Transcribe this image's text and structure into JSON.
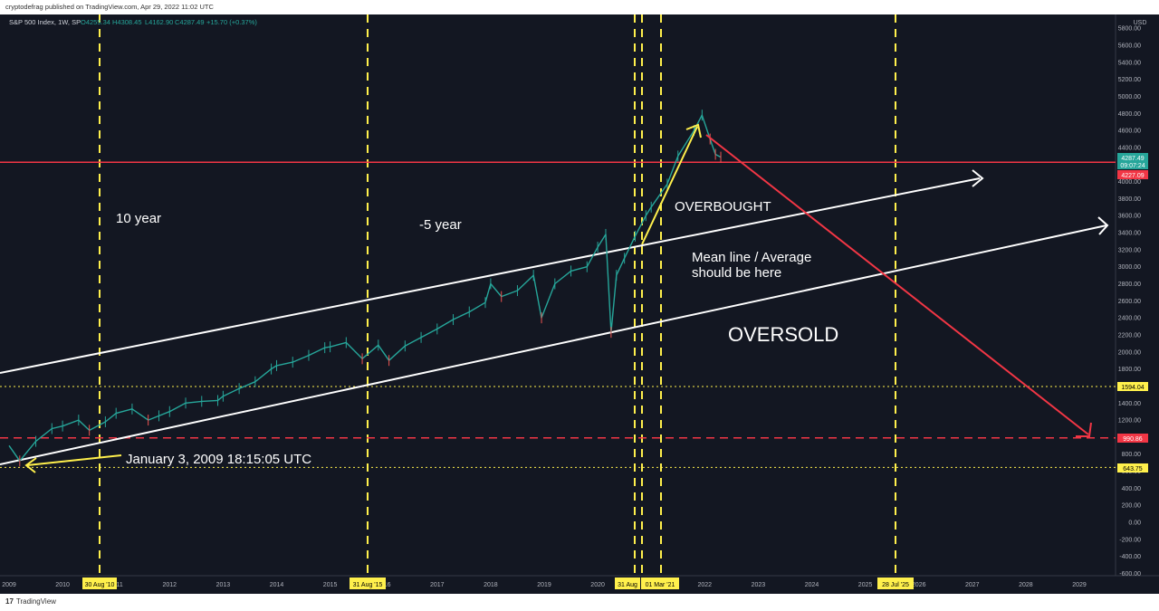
{
  "header": {
    "publisher": "cryptodefrag published on TradingView.com, Apr 29, 2022 11:02 UTC"
  },
  "footer": {
    "brand_mark": "17",
    "brand": "TradingView"
  },
  "legend": {
    "symbol": "S&P 500 Index, 1W, SP",
    "open": "O4255.34",
    "high": "H4308.45",
    "low": "L4162.90",
    "close": "C4287.49",
    "change": "+15.70 (+0.37%)"
  },
  "price_axis": {
    "currency": "USD",
    "ticks": [
      5800,
      5600,
      5400,
      5200,
      5000,
      4800,
      4600,
      4400,
      4000,
      3800,
      3600,
      3400,
      3200,
      3000,
      2800,
      2600,
      2400,
      2200,
      2000,
      1800,
      1400,
      1200,
      800,
      600,
      400,
      200,
      0,
      -200,
      -400,
      -600
    ],
    "last_price": "4287.49",
    "countdown": "09:07:24",
    "red_level_label": "4227.09",
    "level_1594": "1594.04",
    "level_990": "990.86",
    "level_643": "643.75",
    "colors": {
      "last": "#26a69a",
      "red": "#f23645",
      "yellow": "#fff04c"
    }
  },
  "time_axis": {
    "years": [
      "2009",
      "2010",
      "2011",
      "2012",
      "2013",
      "2014",
      "2015",
      "2016",
      "2017",
      "2018",
      "2019",
      "2020",
      "2021",
      "2022",
      "2023",
      "2024",
      "2025",
      "2026",
      "2027",
      "2028",
      "2029"
    ],
    "markers": {
      "aug2010": "30 Aug '10",
      "aug2015": "31 Aug '15",
      "aug2020": "31 Aug",
      "mar2021": "01 Mar '21",
      "jul2025": "28 Jul '25"
    }
  },
  "annotations": {
    "ten_year": "10 year",
    "five_year": "-5 year",
    "overbought": "OVERBOUGHT",
    "mean_line_1": "Mean line / Average",
    "mean_line_2": "should be here",
    "oversold": "OVERSOLD",
    "start_date": "January 3, 2009 18:15:05 UTC"
  },
  "chart_data": {
    "type": "line",
    "title": "S&P 500 Index, 1W, SP",
    "ylabel": "USD",
    "y_range": [
      -600,
      5800
    ],
    "x_range": [
      "2009",
      "2029"
    ],
    "grid": false,
    "series": [
      {
        "name": "S&P 500 Index, 1W, SP",
        "x": [
          2009.0,
          2009.2,
          2009.5,
          2009.8,
          2010.0,
          2010.3,
          2010.5,
          2010.8,
          2011.0,
          2011.3,
          2011.6,
          2011.8,
          2012.0,
          2012.3,
          2012.6,
          2012.9,
          2013.0,
          2013.3,
          2013.6,
          2013.9,
          2014.0,
          2014.3,
          2014.6,
          2014.9,
          2015.0,
          2015.3,
          2015.6,
          2015.9,
          2016.1,
          2016.4,
          2016.7,
          2017.0,
          2017.3,
          2017.6,
          2017.9,
          2018.0,
          2018.2,
          2018.5,
          2018.8,
          2018.95,
          2019.2,
          2019.5,
          2019.8,
          2020.0,
          2020.15,
          2020.25,
          2020.35,
          2020.5,
          2020.7,
          2020.9,
          2021.0,
          2021.3,
          2021.5,
          2021.8,
          2021.95,
          2022.1,
          2022.2,
          2022.3
        ],
        "values": [
          900,
          720,
          950,
          1100,
          1130,
          1200,
          1080,
          1180,
          1280,
          1330,
          1200,
          1250,
          1300,
          1400,
          1420,
          1430,
          1480,
          1570,
          1650,
          1800,
          1840,
          1880,
          1960,
          2050,
          2060,
          2110,
          1920,
          2080,
          1900,
          2070,
          2170,
          2270,
          2380,
          2470,
          2580,
          2800,
          2650,
          2720,
          2900,
          2400,
          2800,
          2950,
          3000,
          3230,
          3380,
          2230,
          2900,
          3100,
          3360,
          3600,
          3700,
          3970,
          4300,
          4600,
          4780,
          4500,
          4320,
          4287
        ]
      }
    ],
    "horizontal_levels": [
      4227.09,
      1594.04,
      990.86,
      643.75
    ],
    "vertical_markers": [
      "30 Aug '10",
      "31 Aug '15",
      "31 Aug",
      "01 Mar '21",
      "28 Jul '25"
    ]
  }
}
